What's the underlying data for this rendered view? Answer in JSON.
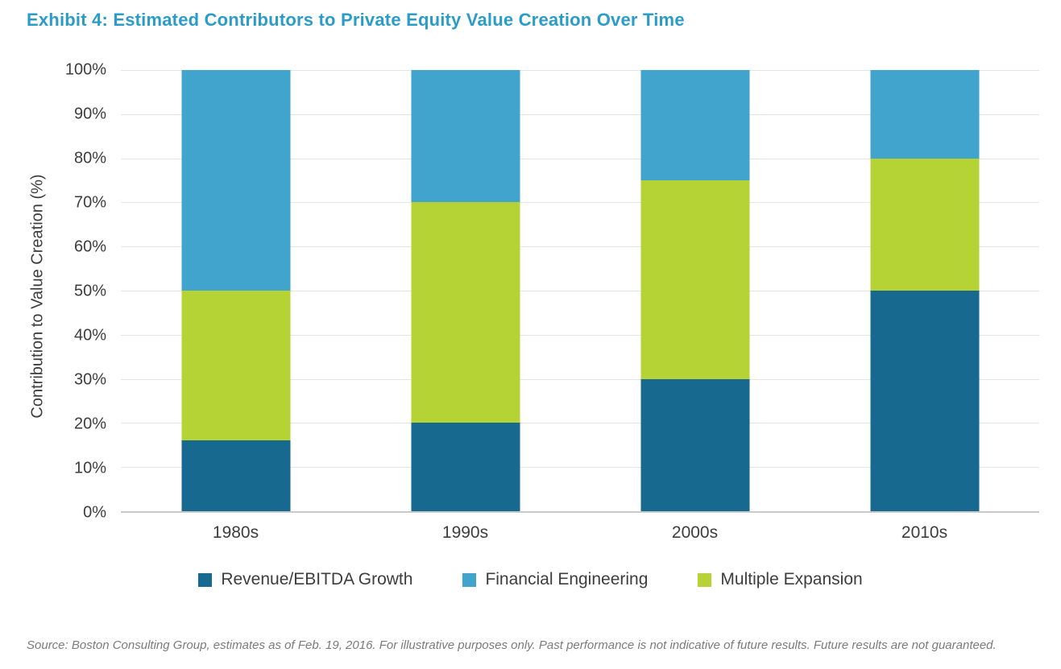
{
  "title": "Exhibit 4: Estimated Contributors to Private Equity Value Creation Over Time",
  "source": "Source: Boston Consulting Group, estimates as of Feb. 19, 2016. For illustrative purposes only. Past performance is not indicative of future results. Future results are not guaranteed.",
  "chart_data": {
    "type": "bar",
    "stacked": true,
    "title": "Exhibit 4: Estimated Contributors to Private Equity Value Creation Over Time",
    "categories": [
      "1980s",
      "1990s",
      "2000s",
      "2010s"
    ],
    "series": [
      {
        "name": "Revenue/EBITDA Growth",
        "color": "#17698f",
        "values": [
          16,
          20,
          30,
          50
        ]
      },
      {
        "name": "Multiple Expansion",
        "color": "#b5d334",
        "values": [
          34,
          50,
          45,
          30
        ]
      },
      {
        "name": "Financial Engineering",
        "color": "#41a4cd",
        "values": [
          50,
          30,
          25,
          20
        ]
      }
    ],
    "xlabel": "",
    "ylabel": "Contribution to Value Creation (%)",
    "ylim": [
      0,
      100
    ],
    "ytick_step": 10,
    "ytick_suffix": "%",
    "grid": true,
    "legend_position": "bottom"
  },
  "legend": {
    "items": [
      {
        "label": "Revenue/EBITDA Growth",
        "color": "#17698f"
      },
      {
        "label": "Financial Engineering",
        "color": "#41a4cd"
      },
      {
        "label": "Multiple Expansion",
        "color": "#b5d334"
      }
    ]
  },
  "colors": {
    "title": "#2b9bc8",
    "axis_text": "#3d3d3e",
    "gridline": "#e4e4e4",
    "axis_line": "#c9c9c9",
    "source_text": "#7b7b7c",
    "background": "#ffffff"
  }
}
